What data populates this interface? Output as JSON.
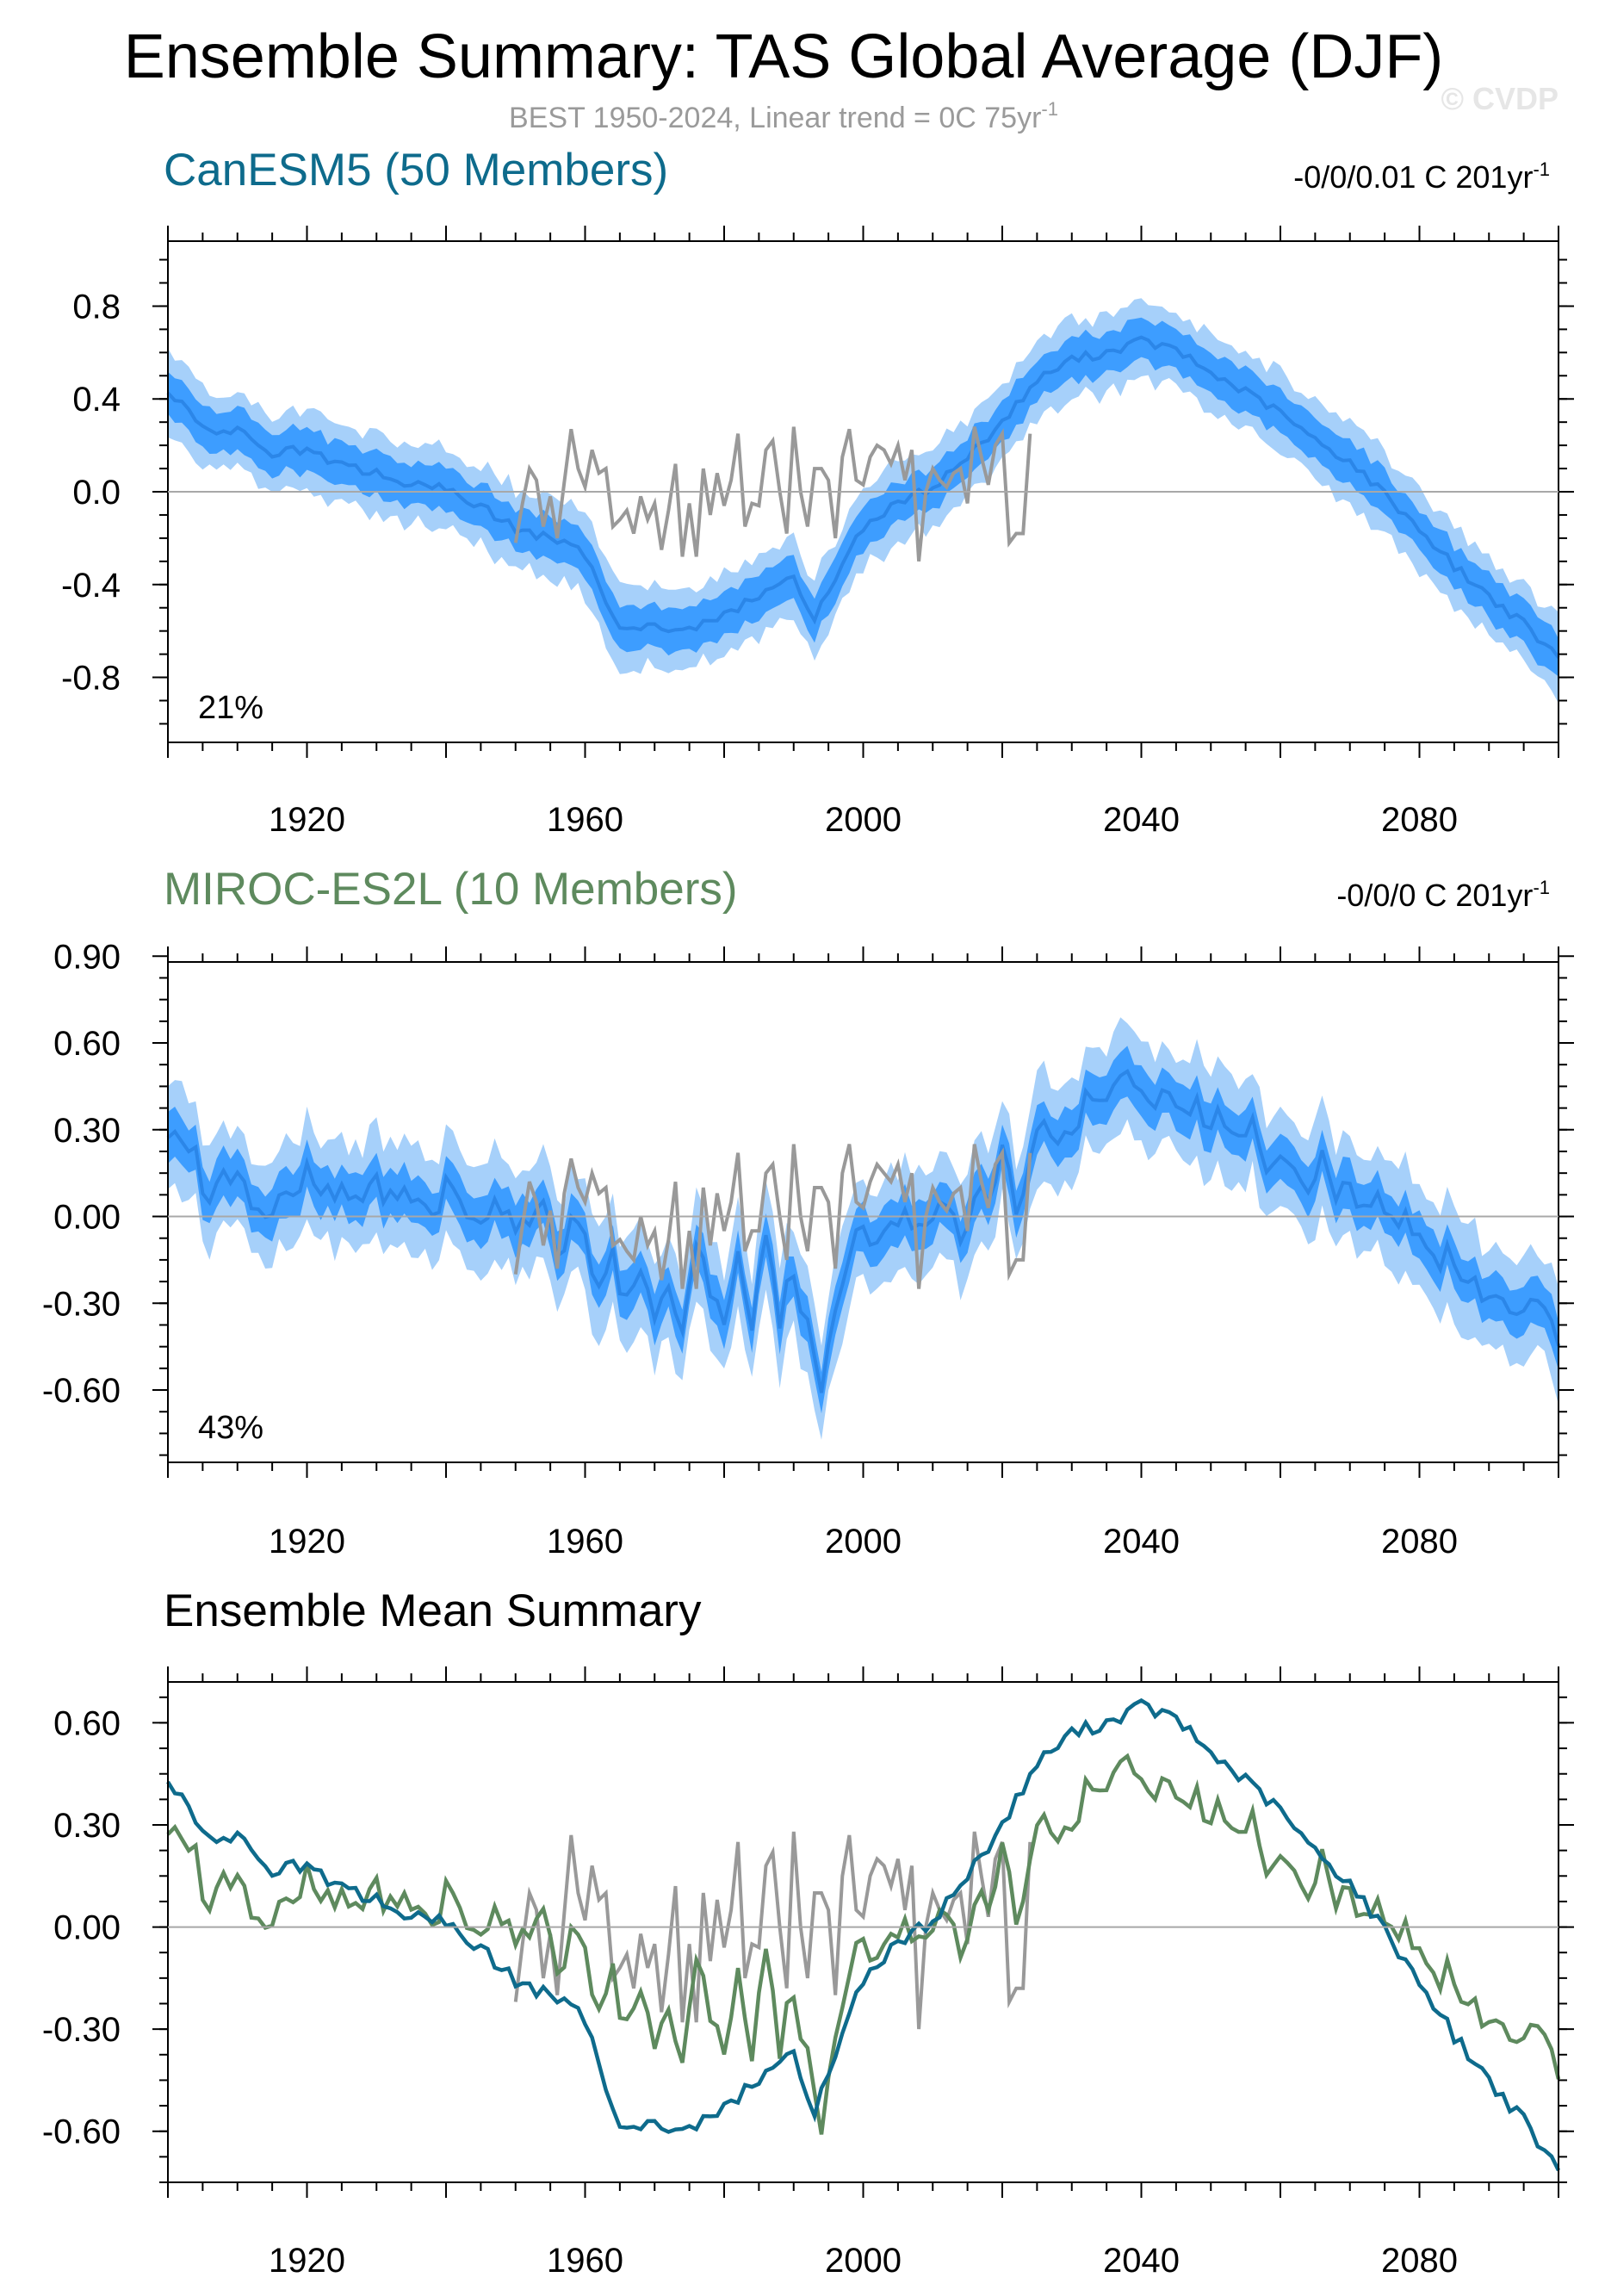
{
  "figure": {
    "title": "Ensemble Summary: TAS Global Average (DJF)",
    "subtitle": "BEST 1950-2024, Linear trend = 0C 75yr",
    "subtitle_sup": "-1",
    "watermark": "© CVDP"
  },
  "colors": {
    "band_outer": "#a6d0fa",
    "band_inner": "#3d9dff",
    "ensemble_mean": "#2b86e8",
    "observations": "#999999",
    "canesm5": "#0e6b8c",
    "miroc": "#5e8a5e"
  },
  "panels": [
    {
      "title": "CanESM5 (50 Members)",
      "trend_text": "-0/0/0.01 C 201yr",
      "trend_sup": "-1",
      "pct_text": "21%"
    },
    {
      "title": "MIROC-ES2L (10 Members)",
      "trend_text": "-0/0/0 C 201yr",
      "trend_sup": "-1",
      "pct_text": "43%"
    },
    {
      "title": "Ensemble Mean Summary"
    }
  ],
  "chart_data": [
    {
      "type": "area",
      "title": "CanESM5 (50 Members)",
      "x_range": [
        1900,
        2100
      ],
      "ylim": [
        -1.08,
        1.08
      ],
      "yticks": [
        -0.8,
        -0.4,
        0.0,
        0.4,
        0.8
      ],
      "ytick_labels": [
        "-0.8",
        "-0.4",
        "0.0",
        "0.4",
        "0.8"
      ],
      "xticks": [
        1920,
        1960,
        2000,
        2040,
        2080
      ],
      "xtick_labels": [
        "1920",
        "1960",
        "2000",
        "2040",
        "2080"
      ],
      "ensemble_mean": {
        "x": [
          1900,
          1905,
          1910,
          1915,
          1920,
          1925,
          1930,
          1935,
          1940,
          1945,
          1950,
          1955,
          1960,
          1963,
          1965,
          1970,
          1975,
          1980,
          1985,
          1990,
          1993,
          1995,
          2000,
          2005,
          2010,
          2015,
          2020,
          2025,
          2030,
          2035,
          2040,
          2045,
          2050,
          2055,
          2060,
          2065,
          2070,
          2075,
          2080,
          2085,
          2090,
          2095,
          2100
        ],
        "y": [
          0.44,
          0.27,
          0.26,
          0.17,
          0.18,
          0.11,
          0.08,
          0.03,
          0.01,
          -0.06,
          -0.16,
          -0.2,
          -0.27,
          -0.47,
          -0.57,
          -0.58,
          -0.6,
          -0.53,
          -0.45,
          -0.36,
          -0.56,
          -0.42,
          -0.15,
          -0.05,
          0.02,
          0.15,
          0.3,
          0.48,
          0.57,
          0.6,
          0.65,
          0.61,
          0.51,
          0.43,
          0.34,
          0.22,
          0.13,
          -0.01,
          -0.16,
          -0.32,
          -0.45,
          -0.57,
          -0.72
        ]
      },
      "inner_half_width": 0.09,
      "outer_half_width": 0.17,
      "observations": {
        "name": "BEST",
        "x": [
          1950,
          1951,
          1952,
          1953,
          1954,
          1955,
          1956,
          1957,
          1958,
          1959,
          1960,
          1961,
          1962,
          1963,
          1964,
          1965,
          1966,
          1967,
          1968,
          1969,
          1970,
          1971,
          1972,
          1973,
          1974,
          1975,
          1976,
          1977,
          1978,
          1979,
          1980,
          1981,
          1982,
          1983,
          1984,
          1985,
          1986,
          1987,
          1988,
          1989,
          1990,
          1991,
          1992,
          1993,
          1994,
          1995,
          1996,
          1997,
          1998,
          1999,
          2000,
          2001,
          2002,
          2003,
          2004,
          2005,
          2006,
          2007,
          2008,
          2009,
          2010,
          2011,
          2012,
          2013,
          2014,
          2015,
          2016,
          2017,
          2018,
          2019,
          2020,
          2021,
          2022,
          2023,
          2024
        ],
        "y": [
          -0.22,
          -0.05,
          0.1,
          0.05,
          -0.15,
          -0.02,
          -0.2,
          0.04,
          0.27,
          0.1,
          0.02,
          0.18,
          0.08,
          0.1,
          -0.15,
          -0.12,
          -0.08,
          -0.18,
          -0.02,
          -0.12,
          -0.05,
          -0.25,
          -0.08,
          0.12,
          -0.28,
          -0.05,
          -0.28,
          0.1,
          -0.1,
          0.08,
          -0.06,
          0.05,
          0.25,
          -0.15,
          -0.05,
          -0.06,
          0.18,
          0.22,
          0.0,
          -0.18,
          0.28,
          0.0,
          -0.15,
          0.1,
          0.1,
          0.05,
          -0.2,
          0.15,
          0.27,
          0.05,
          0.03,
          0.15,
          0.2,
          0.18,
          0.12,
          0.2,
          0.05,
          0.18,
          -0.3,
          0.0,
          0.1,
          0.05,
          0.02,
          0.08,
          0.1,
          -0.05,
          0.28,
          0.15,
          0.03,
          0.2,
          0.25,
          -0.22,
          -0.18,
          -0.18,
          0.25
        ]
      },
      "label": "21%"
    },
    {
      "type": "area",
      "title": "MIROC-ES2L (10 Members)",
      "x_range": [
        1900,
        2100
      ],
      "ylim": [
        -0.85,
        0.88
      ],
      "yticks": [
        -0.6,
        -0.3,
        0.0,
        0.3,
        0.6,
        0.9
      ],
      "ytick_labels": [
        "-0.60",
        "-0.30",
        "0.00",
        "0.30",
        "0.60",
        "0.90"
      ],
      "xticks": [
        1920,
        1960,
        2000,
        2040,
        2080
      ],
      "xtick_labels": [
        "1920",
        "1960",
        "2000",
        "2040",
        "2080"
      ],
      "ensemble_mean": {
        "x": [
          1900,
          1902,
          1904,
          1906,
          1908,
          1910,
          1912,
          1914,
          1916,
          1918,
          1920,
          1922,
          1924,
          1926,
          1928,
          1930,
          1932,
          1934,
          1936,
          1938,
          1940,
          1942,
          1944,
          1946,
          1948,
          1950,
          1952,
          1954,
          1956,
          1958,
          1960,
          1962,
          1964,
          1966,
          1968,
          1970,
          1972,
          1974,
          1976,
          1978,
          1980,
          1982,
          1984,
          1986,
          1988,
          1990,
          1992,
          1994,
          1996,
          1998,
          2000,
          2002,
          2004,
          2006,
          2008,
          2010,
          2012,
          2014,
          2016,
          2018,
          2020,
          2022,
          2024,
          2026,
          2028,
          2030,
          2032,
          2034,
          2036,
          2038,
          2040,
          2042,
          2044,
          2046,
          2048,
          2050,
          2052,
          2054,
          2056,
          2058,
          2060,
          2062,
          2064,
          2066,
          2068,
          2070,
          2072,
          2074,
          2076,
          2078,
          2080,
          2082,
          2084,
          2086,
          2088,
          2090,
          2092,
          2094,
          2096,
          2098,
          2100
        ],
        "y": [
          0.26,
          0.27,
          0.2,
          0.05,
          0.16,
          0.12,
          0.05,
          -0.03,
          0.1,
          0.05,
          0.15,
          0.09,
          0.08,
          0.11,
          0.03,
          0.14,
          0.05,
          0.1,
          0.06,
          0.0,
          0.1,
          0.04,
          0.02,
          0.0,
          0.05,
          -0.03,
          -0.08,
          0.05,
          -0.12,
          -0.02,
          -0.05,
          -0.25,
          -0.15,
          -0.3,
          -0.2,
          -0.34,
          -0.28,
          -0.35,
          -0.1,
          -0.25,
          -0.38,
          -0.15,
          -0.38,
          -0.05,
          -0.35,
          -0.18,
          -0.4,
          -0.58,
          -0.3,
          -0.1,
          -0.05,
          -0.12,
          -0.02,
          0.05,
          -0.05,
          0.0,
          0.05,
          -0.1,
          0.1,
          0.02,
          0.2,
          0.05,
          0.2,
          0.36,
          0.22,
          0.3,
          0.4,
          0.38,
          0.46,
          0.5,
          0.44,
          0.42,
          0.4,
          0.35,
          0.38,
          0.3,
          0.36,
          0.25,
          0.32,
          0.2,
          0.25,
          0.15,
          0.1,
          0.18,
          0.05,
          0.15,
          0.0,
          0.08,
          -0.03,
          0.05,
          -0.1,
          -0.18,
          -0.1,
          -0.25,
          -0.2,
          -0.32,
          -0.25,
          -0.36,
          -0.28,
          -0.35,
          -0.43
        ]
      },
      "inner_half_width": 0.08,
      "outer_half_width": 0.18,
      "observations": {
        "name": "BEST",
        "x": [
          1950,
          1951,
          1952,
          1953,
          1954,
          1955,
          1956,
          1957,
          1958,
          1959,
          1960,
          1961,
          1962,
          1963,
          1964,
          1965,
          1966,
          1967,
          1968,
          1969,
          1970,
          1971,
          1972,
          1973,
          1974,
          1975,
          1976,
          1977,
          1978,
          1979,
          1980,
          1981,
          1982,
          1983,
          1984,
          1985,
          1986,
          1987,
          1988,
          1989,
          1990,
          1991,
          1992,
          1993,
          1994,
          1995,
          1996,
          1997,
          1998,
          1999,
          2000,
          2001,
          2002,
          2003,
          2004,
          2005,
          2006,
          2007,
          2008,
          2009,
          2010,
          2011,
          2012,
          2013,
          2014,
          2015,
          2016,
          2017,
          2018,
          2019,
          2020,
          2021,
          2022,
          2023,
          2024
        ],
        "y": [
          -0.2,
          -0.03,
          0.12,
          0.05,
          -0.1,
          0.02,
          -0.18,
          0.08,
          0.2,
          0.1,
          0.05,
          0.15,
          0.08,
          0.1,
          -0.1,
          -0.08,
          -0.12,
          -0.15,
          0.0,
          -0.1,
          -0.05,
          -0.22,
          -0.08,
          0.12,
          -0.25,
          -0.05,
          -0.25,
          0.1,
          -0.1,
          0.08,
          -0.05,
          0.05,
          0.22,
          -0.12,
          -0.05,
          -0.05,
          0.15,
          0.18,
          0.0,
          -0.15,
          0.25,
          0.0,
          -0.12,
          0.1,
          0.1,
          0.05,
          -0.18,
          0.15,
          0.25,
          0.05,
          0.03,
          0.12,
          0.18,
          0.15,
          0.12,
          0.18,
          0.05,
          0.15,
          -0.25,
          0.0,
          0.1,
          0.05,
          0.02,
          0.08,
          0.1,
          -0.05,
          0.25,
          0.12,
          0.03,
          0.18,
          0.22,
          -0.2,
          -0.15,
          -0.15,
          0.22
        ]
      },
      "label": "43%"
    },
    {
      "type": "line",
      "title": "Ensemble Mean Summary",
      "x_range": [
        1900,
        2100
      ],
      "ylim": [
        -0.75,
        0.72
      ],
      "yticks": [
        -0.6,
        -0.3,
        0.0,
        0.3,
        0.6
      ],
      "ytick_labels": [
        "-0.60",
        "-0.30",
        "0.00",
        "0.30",
        "0.60"
      ],
      "xticks": [
        1920,
        1960,
        2000,
        2040,
        2080
      ],
      "xtick_labels": [
        "1920",
        "1960",
        "2000",
        "2040",
        "2080"
      ],
      "series": [
        {
          "name": "CanESM5",
          "ref": "canesm5",
          "source": 0
        },
        {
          "name": "MIROC-ES2L",
          "ref": "miroc",
          "source": 1
        },
        {
          "name": "BEST",
          "ref": "observations",
          "source": 0
        }
      ]
    }
  ]
}
